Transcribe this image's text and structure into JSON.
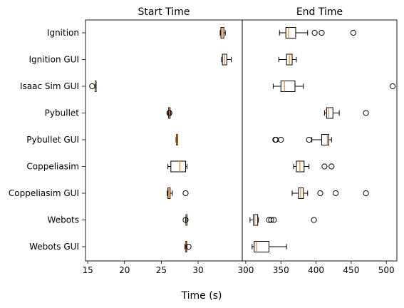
{
  "chart_data": {
    "type": "boxplot",
    "xlabel": "Time (s)",
    "categories": [
      "Ignition",
      "Ignition GUI",
      "Isaac Sim GUI",
      "Pybullet",
      "Pybullet GUI",
      "Coppeliasim",
      "Coppeliasim GUI",
      "Webots",
      "Webots GUI"
    ],
    "median_color": "#ff7f0e",
    "panels": [
      {
        "title": "Start Time",
        "xlim": [
          14.7,
          36
        ],
        "xticks": [
          15,
          20,
          25,
          30
        ],
        "boxes": [
          {
            "category": "Ignition",
            "whisker_low": 33.0,
            "q1": 33.1,
            "median": 33.3,
            "q3": 33.5,
            "whisker_high": 33.7,
            "outliers": []
          },
          {
            "category": "Ignition GUI",
            "whisker_low": 33.2,
            "q1": 33.3,
            "median": 33.6,
            "q3": 33.9,
            "whisker_high": 34.5,
            "outliers": []
          },
          {
            "category": "Isaac Sim GUI",
            "whisker_low": 16.0,
            "q1": 16.0,
            "median": 16.0,
            "q3": 16.1,
            "whisker_high": 16.1,
            "outliers": [
              15.6
            ]
          },
          {
            "category": "Pybullet",
            "whisker_low": 25.9,
            "q1": 26.0,
            "median": 26.1,
            "q3": 26.2,
            "whisker_high": 26.3,
            "outliers": [
              26.1
            ]
          },
          {
            "category": "Pybullet GUI",
            "whisker_low": 27.0,
            "q1": 27.05,
            "median": 27.1,
            "q3": 27.15,
            "whisker_high": 27.2,
            "outliers": []
          },
          {
            "category": "Coppeliasim",
            "whisker_low": 25.9,
            "q1": 26.3,
            "median": 27.5,
            "q3": 28.3,
            "whisker_high": 28.5,
            "outliers": []
          },
          {
            "category": "Coppeliasim GUI",
            "whisker_low": 25.8,
            "q1": 25.9,
            "median": 26.0,
            "q3": 26.2,
            "whisker_high": 26.5,
            "outliers": [
              28.3
            ]
          },
          {
            "category": "Webots",
            "whisker_low": 28.3,
            "q1": 28.35,
            "median": 28.4,
            "q3": 28.45,
            "whisker_high": 28.5,
            "outliers": [
              28.3
            ]
          },
          {
            "category": "Webots GUI",
            "whisker_low": 28.2,
            "q1": 28.3,
            "median": 28.35,
            "q3": 28.45,
            "whisker_high": 28.5,
            "outliers": [
              28.7
            ]
          }
        ]
      },
      {
        "title": "End Time",
        "xlim": [
          295,
          515
        ],
        "xticks": [
          300,
          350,
          400,
          450,
          500
        ],
        "boxes": [
          {
            "category": "Ignition",
            "whisker_low": 348,
            "q1": 357,
            "median": 361,
            "q3": 371,
            "whisker_high": 388,
            "outliers": [
              398,
              408,
              453
            ]
          },
          {
            "category": "Ignition GUI",
            "whisker_low": 347,
            "q1": 358,
            "median": 362,
            "q3": 366,
            "whisker_high": 372,
            "outliers": []
          },
          {
            "category": "Isaac Sim GUI",
            "whisker_low": 339,
            "q1": 350,
            "median": 355,
            "q3": 370,
            "whisker_high": 382,
            "outliers": [
              509
            ]
          },
          {
            "category": "Pybullet",
            "whisker_low": 412,
            "q1": 415,
            "median": 418,
            "q3": 424,
            "whisker_high": 433,
            "outliers": [
              471
            ]
          },
          {
            "category": "Pybullet GUI",
            "whisker_low": 394,
            "q1": 408,
            "median": 416,
            "q3": 418,
            "whisker_high": 422,
            "outliers": [
              342,
              343,
              350,
              390
            ]
          },
          {
            "category": "Coppeliasim",
            "whisker_low": 368,
            "q1": 372,
            "median": 377,
            "q3": 383,
            "whisker_high": 390,
            "outliers": [
              412,
              422
            ]
          },
          {
            "category": "Coppeliasim GUI",
            "whisker_low": 366,
            "q1": 375,
            "median": 378,
            "q3": 382,
            "whisker_high": 388,
            "outliers": [
              406,
              428,
              471
            ]
          },
          {
            "category": "Webots",
            "whisker_low": 306,
            "q1": 311,
            "median": 313,
            "q3": 317,
            "whisker_high": 318,
            "outliers": [
              333,
              336,
              340,
              397
            ]
          },
          {
            "category": "Webots GUI",
            "whisker_low": 309,
            "q1": 312,
            "median": 315,
            "q3": 333,
            "whisker_high": 358,
            "outliers": []
          }
        ]
      }
    ]
  }
}
